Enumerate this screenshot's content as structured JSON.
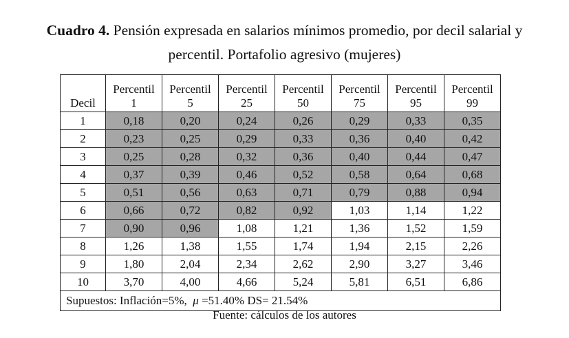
{
  "title": {
    "label": "Cuadro 4.",
    "line1": " Pensión expresada en salarios mínimos promedio, por decil salarial y",
    "line2": "percentil. Portafolio agresivo (mujeres)"
  },
  "table": {
    "decil_header": "Decil",
    "columns": [
      [
        "Percentil",
        "1"
      ],
      [
        "Percentil",
        "5"
      ],
      [
        "Percentil",
        "25"
      ],
      [
        "Percentil",
        "50"
      ],
      [
        "Percentil",
        "75"
      ],
      [
        "Percentil",
        "95"
      ],
      [
        "Percentil",
        "99"
      ]
    ],
    "rows": [
      {
        "decil": "1",
        "values": [
          "0,18",
          "0,20",
          "0,24",
          "0,26",
          "0,29",
          "0,33",
          "0,35"
        ],
        "shaded": 7
      },
      {
        "decil": "2",
        "values": [
          "0,23",
          "0,25",
          "0,29",
          "0,33",
          "0,36",
          "0,40",
          "0,42"
        ],
        "shaded": 7
      },
      {
        "decil": "3",
        "values": [
          "0,25",
          "0,28",
          "0,32",
          "0,36",
          "0,40",
          "0,44",
          "0,47"
        ],
        "shaded": 7
      },
      {
        "decil": "4",
        "values": [
          "0,37",
          "0,39",
          "0,46",
          "0,52",
          "0,58",
          "0,64",
          "0,68"
        ],
        "shaded": 7
      },
      {
        "decil": "5",
        "values": [
          "0,51",
          "0,56",
          "0,63",
          "0,71",
          "0,79",
          "0,88",
          "0,94"
        ],
        "shaded": 7
      },
      {
        "decil": "6",
        "values": [
          "0,66",
          "0,72",
          "0,82",
          "0,92",
          "1,03",
          "1,14",
          "1,22"
        ],
        "shaded": 4
      },
      {
        "decil": "7",
        "values": [
          "0,90",
          "0,96",
          "1,08",
          "1,21",
          "1,36",
          "1,52",
          "1,59"
        ],
        "shaded": 2
      },
      {
        "decil": "8",
        "values": [
          "1,26",
          "1,38",
          "1,55",
          "1,74",
          "1,94",
          "2,15",
          "2,26"
        ],
        "shaded": 0
      },
      {
        "decil": "9",
        "values": [
          "1,80",
          "2,04",
          "2,34",
          "2,62",
          "2,90",
          "3,27",
          "3,46"
        ],
        "shaded": 0
      },
      {
        "decil": "10",
        "values": [
          "3,70",
          "4,00",
          "4,66",
          "5,24",
          "5,81",
          "6,51",
          "6,86"
        ],
        "shaded": 0
      }
    ],
    "footnote_a": "Supuestos: Inflación=5%,  ",
    "footnote_mu": "μ",
    "footnote_b": " =51.40% DS= 21.54%",
    "shade_color": "#a6a6a6"
  },
  "source": "Fuente: cálculos de los autores"
}
